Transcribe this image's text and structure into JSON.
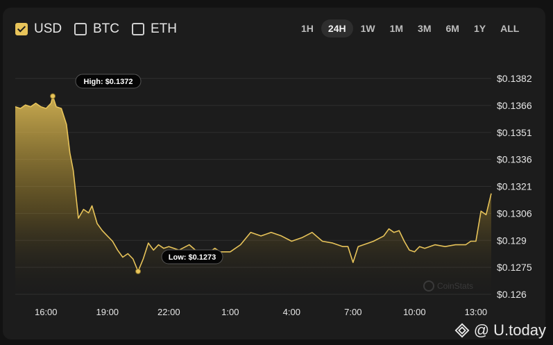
{
  "currencies": [
    {
      "label": "USD",
      "checked": true
    },
    {
      "label": "BTC",
      "checked": false
    },
    {
      "label": "ETH",
      "checked": false
    }
  ],
  "ranges": [
    "1H",
    "24H",
    "1W",
    "1M",
    "3M",
    "6M",
    "1Y",
    "ALL"
  ],
  "active_range": "24H",
  "watermark": "CoinStats",
  "brand": {
    "at": "@",
    "name": "U.today"
  },
  "colors": {
    "line": "#e8c45a",
    "accent": "#e8c45a",
    "background": "#1c1c1c"
  },
  "chart_data": {
    "type": "area",
    "title": "",
    "xlabel": "",
    "ylabel": "",
    "x_ticks": [
      "16:00",
      "19:00",
      "22:00",
      "1:00",
      "4:00",
      "7:00",
      "10:00",
      "13:00"
    ],
    "y_ticks": [
      "$0.1382",
      "$0.1366",
      "$0.1351",
      "$0.1336",
      "$0.1321",
      "$0.1306",
      "$0.129",
      "$0.1275",
      "$0.126"
    ],
    "ylim": [
      0.126,
      0.1382
    ],
    "xlim_hours": [
      14.5,
      13.75
    ],
    "annotations": {
      "high": {
        "label": "High: $0.1372",
        "time": "16:20",
        "value": 0.1372
      },
      "low": {
        "label": "Low: $0.1273",
        "time": "20:30",
        "value": 0.1273
      }
    },
    "series": [
      {
        "times": [
          "14:30",
          "14:45",
          "15:00",
          "15:15",
          "15:30",
          "15:45",
          "16:00",
          "16:15",
          "16:20",
          "16:30",
          "16:45",
          "17:00",
          "17:10",
          "17:20",
          "17:35",
          "17:50",
          "18:05",
          "18:15",
          "18:30",
          "18:45",
          "19:00",
          "19:15",
          "19:30",
          "19:45",
          "20:00",
          "20:15",
          "20:30",
          "20:45",
          "21:00",
          "21:15",
          "21:30",
          "21:45",
          "22:00",
          "22:30",
          "23:00",
          "23:30",
          "0:00",
          "0:15",
          "0:30",
          "1:00",
          "1:30",
          "2:00",
          "2:30",
          "3:00",
          "3:30",
          "4:00",
          "4:30",
          "5:00",
          "5:30",
          "6:00",
          "6:30",
          "6:45",
          "7:00",
          "7:15",
          "7:45",
          "8:00",
          "8:30",
          "8:45",
          "9:00",
          "9:15",
          "9:30",
          "9:45",
          "10:00",
          "10:15",
          "10:30",
          "11:00",
          "11:30",
          "12:00",
          "12:30",
          "12:45",
          "13:00",
          "13:15",
          "13:30",
          "13:45"
        ],
        "values": [
          0.1366,
          0.1365,
          0.1367,
          0.1366,
          0.1368,
          0.1366,
          0.1365,
          0.1368,
          0.1372,
          0.1366,
          0.1365,
          0.1356,
          0.134,
          0.133,
          0.1303,
          0.1308,
          0.1306,
          0.131,
          0.13,
          0.1296,
          0.1293,
          0.129,
          0.1285,
          0.1281,
          0.1283,
          0.128,
          0.1273,
          0.128,
          0.1289,
          0.1285,
          0.1288,
          0.1286,
          0.1287,
          0.1285,
          0.1288,
          0.1283,
          0.1284,
          0.1286,
          0.1284,
          0.1284,
          0.1288,
          0.1295,
          0.1293,
          0.1295,
          0.1293,
          0.129,
          0.1292,
          0.1295,
          0.129,
          0.1289,
          0.1287,
          0.1287,
          0.1278,
          0.1287,
          0.1289,
          0.129,
          0.1293,
          0.1297,
          0.1295,
          0.1296,
          0.129,
          0.1285,
          0.1284,
          0.1287,
          0.1286,
          0.1288,
          0.1287,
          0.1288,
          0.1288,
          0.129,
          0.129,
          0.1307,
          0.1305,
          0.1317
        ]
      }
    ]
  }
}
